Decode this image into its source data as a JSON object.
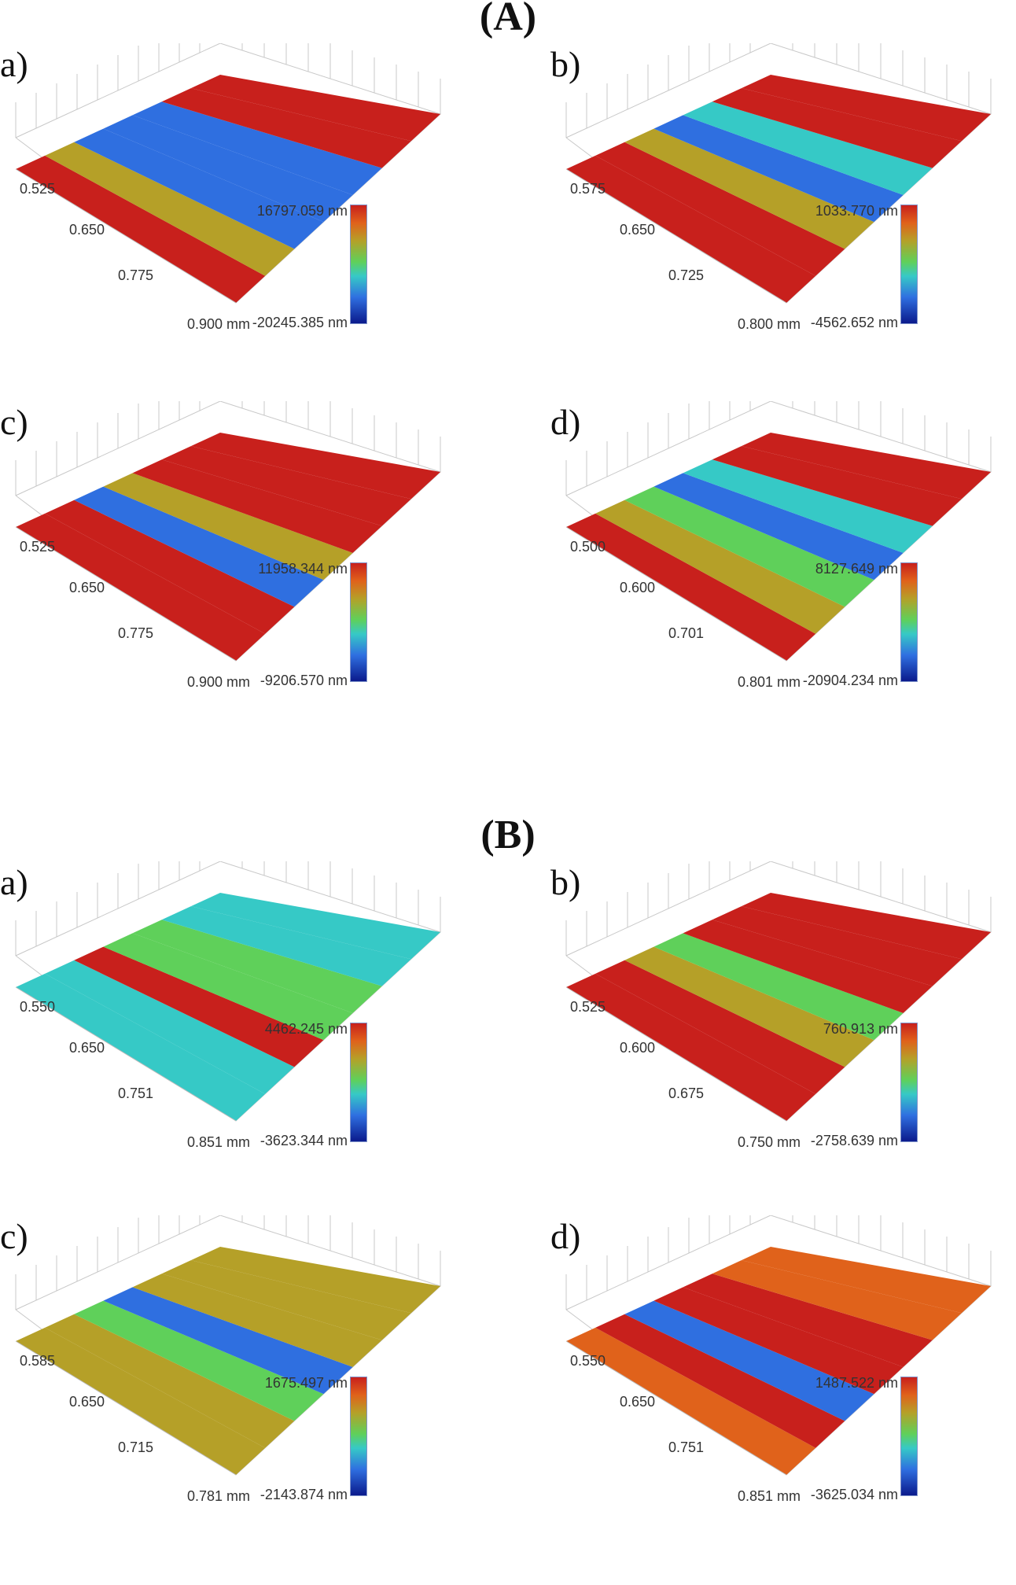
{
  "figure": {
    "sections": [
      {
        "title": "(A)",
        "panels": [
          {
            "label": "a)",
            "ticks": [
              "0.525",
              "0.650",
              "0.775",
              "0.900 mm"
            ],
            "scale_max": "16797.059 nm",
            "scale_min": "-20245.385 nm"
          },
          {
            "label": "b)",
            "ticks": [
              "0.575",
              "0.650",
              "0.725",
              "0.800 mm"
            ],
            "scale_max": "1033.770 nm",
            "scale_min": "-4562.652 nm"
          },
          {
            "label": "c)",
            "ticks": [
              "0.525",
              "0.650",
              "0.775",
              "0.900 mm"
            ],
            "scale_max": "11958.344 nm",
            "scale_min": "-9206.570 nm"
          },
          {
            "label": "d)",
            "ticks": [
              "0.500",
              "0.600",
              "0.701",
              "0.801 mm"
            ],
            "scale_max": "8127.649 nm",
            "scale_min": "-20904.234 nm"
          }
        ]
      },
      {
        "title": "(B)",
        "panels": [
          {
            "label": "a)",
            "ticks": [
              "0.550",
              "0.650",
              "0.751",
              "0.851 mm"
            ],
            "scale_max": "4462.245 nm",
            "scale_min": "-3623.344 nm"
          },
          {
            "label": "b)",
            "ticks": [
              "0.525",
              "0.600",
              "0.675",
              "0.750 mm"
            ],
            "scale_max": "760.913 nm",
            "scale_min": "-2758.639 nm"
          },
          {
            "label": "c)",
            "ticks": [
              "0.585",
              "0.650",
              "0.715",
              "0.781 mm"
            ],
            "scale_max": "1675.497 nm",
            "scale_min": "-2143.874 nm"
          },
          {
            "label": "d)",
            "ticks": [
              "0.550",
              "0.650",
              "0.751",
              "0.851 mm"
            ],
            "scale_max": "1487.522 nm",
            "scale_min": "-3625.034 nm"
          }
        ]
      }
    ],
    "colors": {
      "red": "#c8201c",
      "orange": "#e0621b",
      "yellow": "#b5a028",
      "green": "#5fd05a",
      "cyan": "#36c9c6",
      "blue": "#2f6fe0",
      "navy": "#0b1a8c",
      "grid": "#c8c8c8"
    }
  }
}
